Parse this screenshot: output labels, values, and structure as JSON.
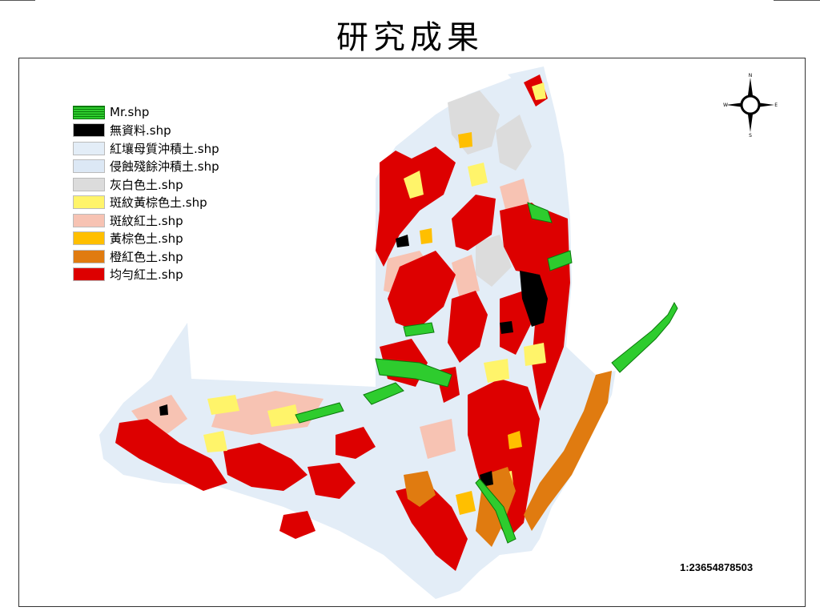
{
  "slide": {
    "title": "研究成果"
  },
  "legend": {
    "items": [
      {
        "label": "Mr.shp",
        "color": "#2ecc2e",
        "pattern": "hatch"
      },
      {
        "label": "無資料.shp",
        "color": "#000000"
      },
      {
        "label": "紅壤母質沖積土.shp",
        "color": "#e3edf7"
      },
      {
        "label": "侵蝕殘餘沖積土.shp",
        "color": "#dce8f5"
      },
      {
        "label": "灰白色土.shp",
        "color": "#dcdcdc"
      },
      {
        "label": "斑紋黃棕色土.shp",
        "color": "#fff46a"
      },
      {
        "label": "斑紋紅土.shp",
        "color": "#f7c3b3"
      },
      {
        "label": "黃棕色土.shp",
        "color": "#ffbf00"
      },
      {
        "label": "橙紅色土.shp",
        "color": "#e07b10"
      },
      {
        "label": "均勻紅土.shp",
        "color": "#dd0000"
      }
    ]
  },
  "map": {
    "scale_text": "1:23654878503",
    "compass": {
      "n": "N",
      "s": "S",
      "e": "E",
      "w": "W"
    }
  }
}
